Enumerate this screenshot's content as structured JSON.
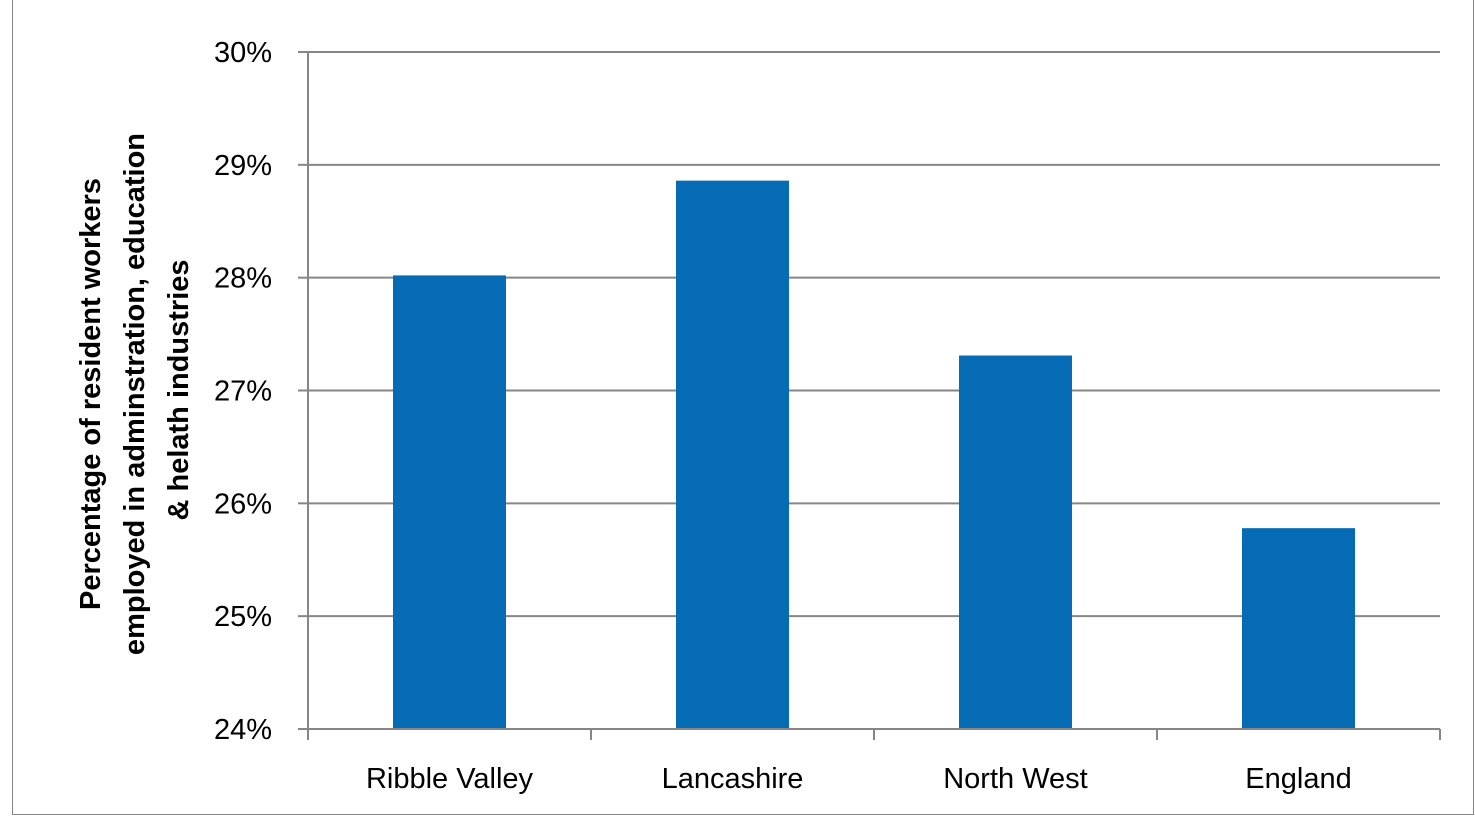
{
  "chart_data": {
    "type": "bar",
    "title": "",
    "xlabel": "",
    "ylabel_lines": [
      "Percentage of resident workers",
      "employed in adminstration, education",
      "& helath industries"
    ],
    "categories": [
      "Ribble Valley",
      "Lancashire",
      "North West",
      "England"
    ],
    "values": [
      28.02,
      28.86,
      27.31,
      25.78
    ],
    "ylim": [
      24,
      30
    ],
    "yticks": [
      24,
      25,
      26,
      27,
      28,
      29,
      30
    ],
    "ytick_labels": [
      "24%",
      "25%",
      "26%",
      "27%",
      "28%",
      "29%",
      "30%"
    ],
    "grid": true,
    "legend": "none",
    "bar_color": "#056BB5",
    "grid_color": "#868686"
  }
}
